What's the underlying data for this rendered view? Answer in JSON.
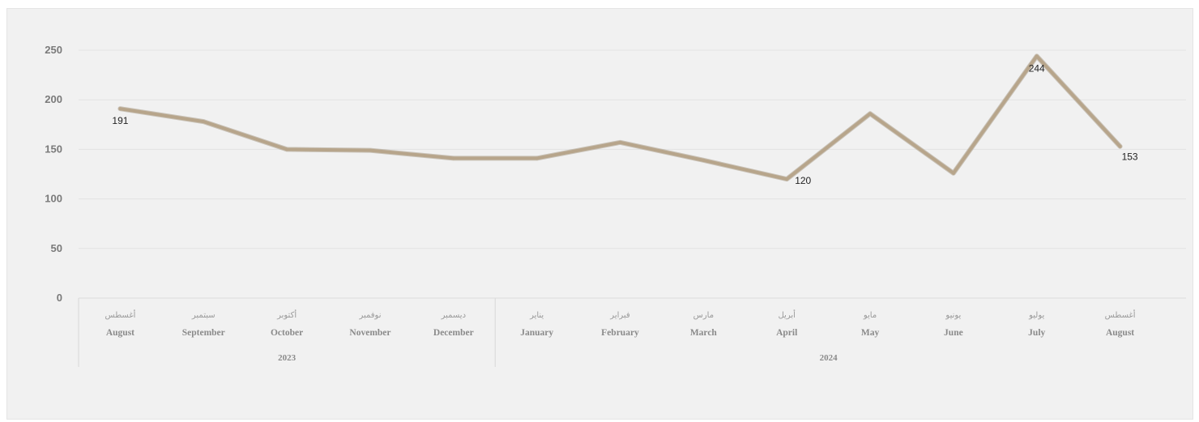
{
  "chart_data": {
    "type": "line",
    "categories": [
      {
        "ar": "أغسطس",
        "en": "August",
        "year": "2023"
      },
      {
        "ar": "سبتمبر",
        "en": "September",
        "year": "2023"
      },
      {
        "ar": "أكتوبر",
        "en": "October",
        "year": "2023"
      },
      {
        "ar": "نوفمبر",
        "en": "November",
        "year": "2023"
      },
      {
        "ar": "ديسمبر",
        "en": "December",
        "year": "2023"
      },
      {
        "ar": "يناير",
        "en": "January",
        "year": "2024"
      },
      {
        "ar": "فبراير",
        "en": "February",
        "year": "2024"
      },
      {
        "ar": "مارس",
        "en": "March",
        "year": "2024"
      },
      {
        "ar": "أبريل",
        "en": "April",
        "year": "2024"
      },
      {
        "ar": "مايو",
        "en": "May",
        "year": "2024"
      },
      {
        "ar": "يونيو",
        "en": "June",
        "year": "2024"
      },
      {
        "ar": "يوليو",
        "en": "July",
        "year": "2024"
      },
      {
        "ar": "أغسطس",
        "en": "August",
        "year": "2024"
      }
    ],
    "years": [
      {
        "label": "2023",
        "count": 5
      },
      {
        "label": "2024",
        "count": 8
      }
    ],
    "series": [
      {
        "values": [
          191,
          178,
          150,
          149,
          141,
          141,
          157,
          139,
          120,
          186,
          126,
          244,
          153
        ],
        "color": "#b7a58b",
        "data_labels": [
          {
            "index": 0,
            "text": "191"
          },
          {
            "index": 8,
            "text": "120"
          },
          {
            "index": 11,
            "text": "244"
          },
          {
            "index": 12,
            "text": "153"
          }
        ]
      }
    ],
    "ylim": [
      0,
      250
    ],
    "yticks": [
      "0",
      "50",
      "100",
      "150",
      "200",
      "250"
    ],
    "grid": true,
    "title": "",
    "xlabel": "",
    "ylabel": ""
  }
}
